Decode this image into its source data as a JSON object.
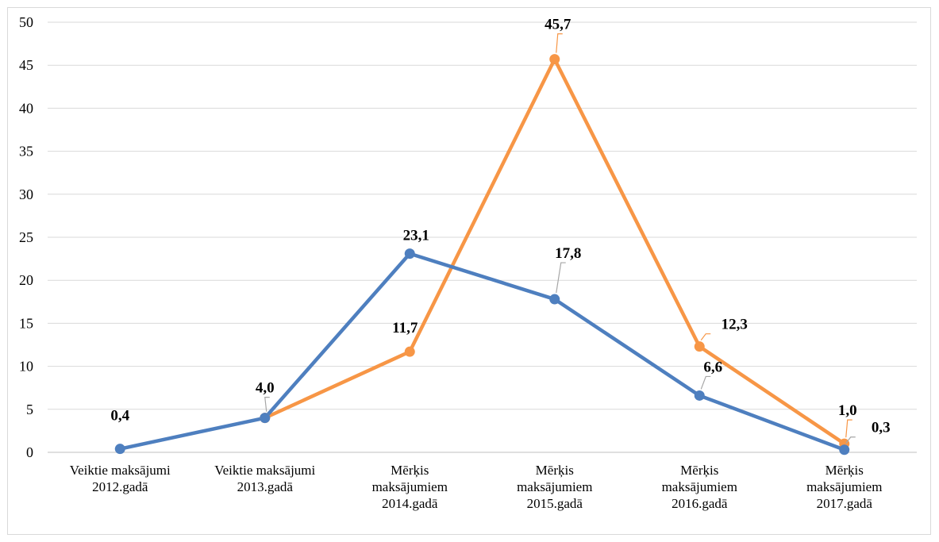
{
  "chart_data": {
    "type": "line",
    "categories": [
      [
        "Veiktie maksājumi",
        "2012.gadā"
      ],
      [
        "Veiktie maksājumi",
        "2013.gadā"
      ],
      [
        "Mērķis",
        "maksājumiem",
        "2014.gadā"
      ],
      [
        "Mērķis",
        "maksājumiem",
        "2015.gadā"
      ],
      [
        "Mērķis",
        "maksājumiem",
        "2016.gadā"
      ],
      [
        "Mērķis",
        "maksājumiem",
        "2017.gadā"
      ]
    ],
    "series": [
      {
        "color": "#4e7fbf",
        "values": [
          0.4,
          4.0,
          23.1,
          17.8,
          6.6,
          0.3
        ],
        "labels": [
          "0,4",
          "4,0",
          "23,1",
          "17,8",
          "6,6",
          "0,3"
        ]
      },
      {
        "color": "#f79646",
        "values": [
          null,
          4.0,
          11.7,
          45.7,
          12.3,
          1.0
        ],
        "labels": [
          "",
          "",
          "11,7",
          "45,7",
          "12,3",
          "1,0"
        ]
      }
    ],
    "ylim": [
      0,
      50
    ],
    "yticks": [
      "0",
      "5",
      "10",
      "15",
      "20",
      "25",
      "30",
      "35",
      "40",
      "45",
      "50"
    ],
    "grid": true,
    "legend": "none",
    "title": "",
    "xlabel": "",
    "ylabel": ""
  }
}
